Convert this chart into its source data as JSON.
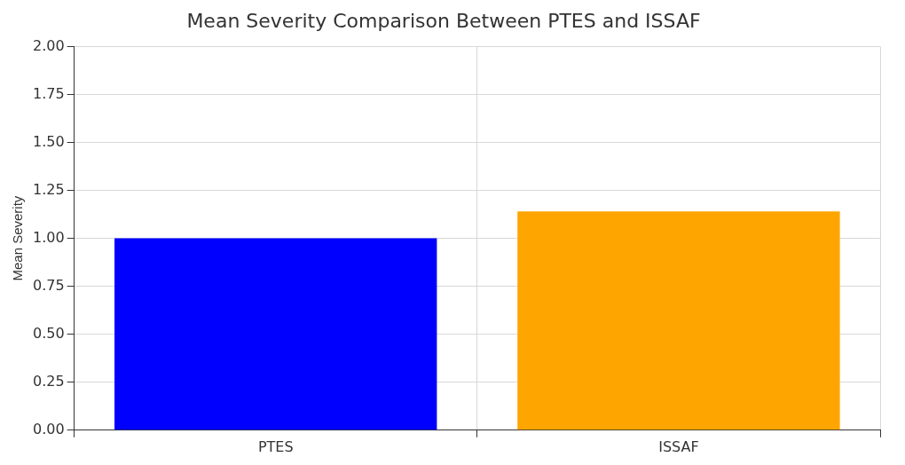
{
  "chart_data": {
    "type": "bar",
    "title": "Mean Severity Comparison Between PTES and ISSAF",
    "ylabel": "Mean Severity",
    "categories": [
      "PTES",
      "ISSAF"
    ],
    "values": [
      1.0,
      1.14
    ],
    "colors": [
      "#0000ff",
      "#ffa500"
    ],
    "ylim": [
      0,
      2
    ],
    "yticks": [
      {
        "value": 0,
        "label": "0.00"
      },
      {
        "value": 0.25,
        "label": "0.25"
      },
      {
        "value": 0.5,
        "label": "0.50"
      },
      {
        "value": 0.75,
        "label": "0.75"
      },
      {
        "value": 1,
        "label": "1.00"
      },
      {
        "value": 1.25,
        "label": "1.25"
      },
      {
        "value": 1.5,
        "label": "1.50"
      },
      {
        "value": 1.75,
        "label": "1.75"
      },
      {
        "value": 2,
        "label": "2.00"
      }
    ],
    "grid": true
  }
}
